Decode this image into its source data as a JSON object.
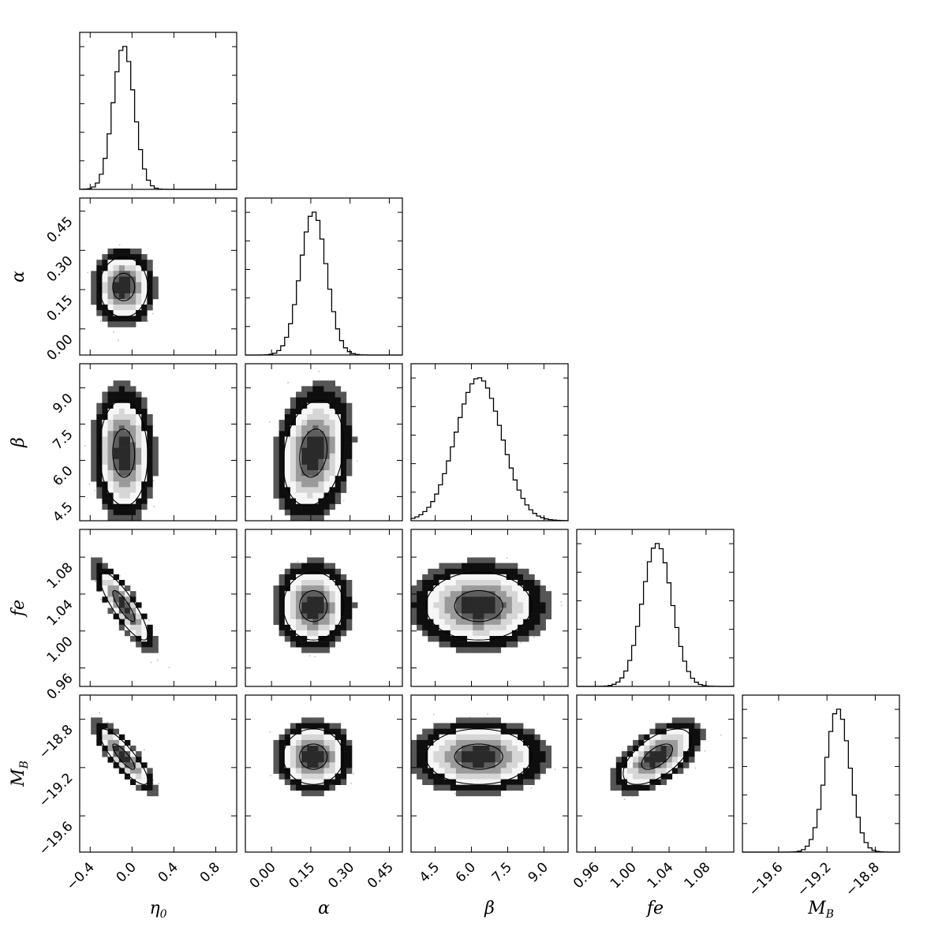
{
  "chart_data": {
    "type": "corner",
    "parameters": [
      {
        "key": "eta0",
        "label": "η",
        "sub": "0",
        "range": [
          -0.5,
          1.0
        ],
        "ticks": [
          "−0.4",
          "0.0",
          "0.4",
          "0.8"
        ],
        "tick_values": [
          -0.4,
          0.0,
          0.4,
          0.8
        ],
        "mean": -0.08,
        "sd": 0.1
      },
      {
        "key": "alpha",
        "label": "α",
        "sub": "",
        "range": [
          -0.1,
          0.5
        ],
        "ticks": [
          "0.00",
          "0.15",
          "0.30",
          "0.45"
        ],
        "tick_values": [
          0.0,
          0.15,
          0.3,
          0.45
        ],
        "mean": 0.16,
        "sd": 0.05
      },
      {
        "key": "beta",
        "label": "β",
        "sub": "",
        "range": [
          3.5,
          10.0
        ],
        "ticks": [
          "4.5",
          "6.0",
          "7.5",
          "9.0"
        ],
        "tick_values": [
          4.5,
          6.0,
          7.5,
          9.0
        ],
        "mean": 6.3,
        "sd": 0.95
      },
      {
        "key": "fe",
        "label": "fe",
        "sub": "",
        "range": [
          0.94,
          1.11
        ],
        "ticks": [
          "0.96",
          "1.00",
          "1.04",
          "1.08"
        ],
        "tick_values": [
          0.96,
          1.0,
          1.04,
          1.08
        ],
        "mean": 1.027,
        "sd": 0.016
      },
      {
        "key": "MB",
        "label": "M",
        "sub": "B",
        "range": [
          -19.9,
          -18.6
        ],
        "ticks": [
          "−19.6",
          "−19.2",
          "−18.8"
        ],
        "tick_values": [
          -19.6,
          -19.2,
          -18.8
        ],
        "mean": -19.11,
        "sd": 0.1
      }
    ],
    "correlations": {
      "1-0": 0.0,
      "2-0": -0.05,
      "2-1": 0.2,
      "3-0": -0.85,
      "3-1": 0.0,
      "3-2": 0.0,
      "4-0": -0.85,
      "4-1": 0.0,
      "4-2": 0.0,
      "4-3": 0.6
    },
    "histogram_bins": 40,
    "colors": {
      "ink": "#000000",
      "background": "#ffffff"
    }
  }
}
